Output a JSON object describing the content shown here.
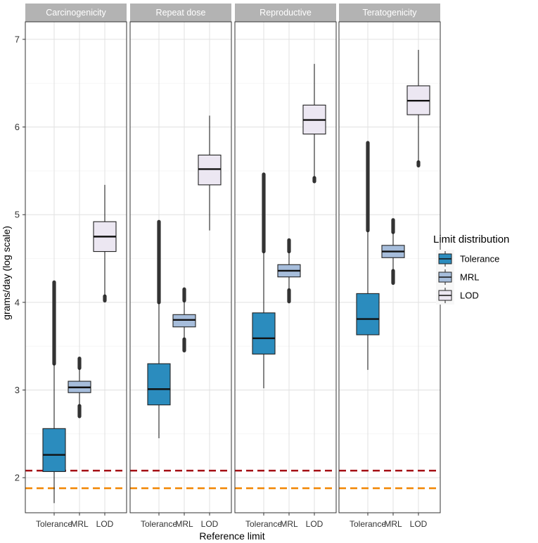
{
  "chart_data": {
    "type": "boxplot",
    "ylabel": "grams/day (log scale)",
    "xlabel": "Reference limit",
    "ylim": [
      1.6,
      7.2
    ],
    "yticks": [
      2,
      3,
      4,
      5,
      6,
      7
    ],
    "categories": [
      "Tolerance",
      "MRL",
      "LOD"
    ],
    "legend": {
      "title": "Limit distribution",
      "position": "right",
      "entries": [
        "Tolerance",
        "MRL",
        "LOD"
      ]
    },
    "colors": {
      "Tolerance": "#2b8cbe",
      "MRL": "#a6bddb",
      "LOD": "#ece7f2"
    },
    "reference_lines": [
      {
        "y": 2.08,
        "color": "#a50f15",
        "style": "dashed"
      },
      {
        "y": 1.88,
        "color": "#f28500",
        "style": "dashed"
      }
    ],
    "panels": [
      {
        "title": "Carcinogenicity",
        "boxes": [
          {
            "category": "Tolerance",
            "whisker_low": 1.71,
            "q1": 2.07,
            "median": 2.26,
            "q3": 2.56,
            "whisker_high": 3.3,
            "outlier_max": 4.23
          },
          {
            "category": "MRL",
            "whisker_low": 2.82,
            "q1": 2.97,
            "median": 3.03,
            "q3": 3.1,
            "whisker_high": 3.25,
            "outlier_min": 2.7,
            "outlier_max": 3.36
          },
          {
            "category": "LOD",
            "whisker_low": 4.07,
            "q1": 4.58,
            "median": 4.75,
            "q3": 4.92,
            "whisker_high": 5.34,
            "outlier_min": 4.02
          }
        ]
      },
      {
        "title": "Repeat dose",
        "boxes": [
          {
            "category": "Tolerance",
            "whisker_low": 2.45,
            "q1": 2.83,
            "median": 3.01,
            "q3": 3.3,
            "whisker_high": 4.0,
            "outlier_max": 4.92
          },
          {
            "category": "MRL",
            "whisker_low": 3.58,
            "q1": 3.72,
            "median": 3.8,
            "q3": 3.86,
            "whisker_high": 4.02,
            "outlier_min": 3.45,
            "outlier_max": 4.15
          },
          {
            "category": "LOD",
            "whisker_low": 4.82,
            "q1": 5.34,
            "median": 5.52,
            "q3": 5.68,
            "whisker_high": 6.13
          }
        ]
      },
      {
        "title": "Reproductive",
        "boxes": [
          {
            "category": "Tolerance",
            "whisker_low": 3.02,
            "q1": 3.41,
            "median": 3.59,
            "q3": 3.88,
            "whisker_high": 4.58,
            "outlier_max": 5.46
          },
          {
            "category": "MRL",
            "whisker_low": 4.14,
            "q1": 4.29,
            "median": 4.36,
            "q3": 4.43,
            "whisker_high": 4.58,
            "outlier_min": 4.01,
            "outlier_max": 4.71
          },
          {
            "category": "LOD",
            "whisker_low": 5.42,
            "q1": 5.92,
            "median": 6.08,
            "q3": 6.25,
            "whisker_high": 6.72,
            "outlier_min": 5.38
          }
        ]
      },
      {
        "title": "Teratogenicity",
        "boxes": [
          {
            "category": "Tolerance",
            "whisker_low": 3.23,
            "q1": 3.63,
            "median": 3.81,
            "q3": 4.1,
            "whisker_high": 4.82,
            "outlier_max": 5.82
          },
          {
            "category": "MRL",
            "whisker_low": 4.36,
            "q1": 4.51,
            "median": 4.58,
            "q3": 4.65,
            "whisker_high": 4.8,
            "outlier_min": 4.22,
            "outlier_max": 4.94
          },
          {
            "category": "LOD",
            "whisker_low": 5.6,
            "q1": 6.14,
            "median": 6.3,
            "q3": 6.47,
            "whisker_high": 6.88,
            "outlier_min": 5.56
          }
        ]
      }
    ]
  }
}
